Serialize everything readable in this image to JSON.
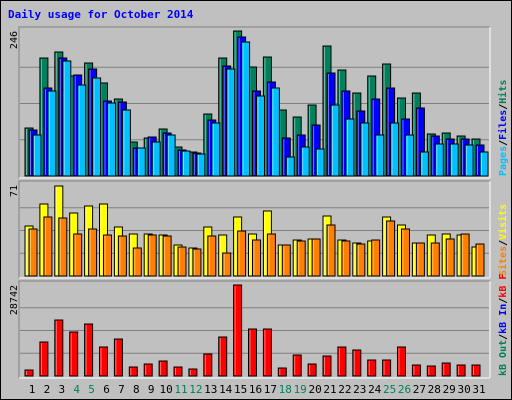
{
  "title": "Daily usage for October 2014",
  "colors": {
    "background": "#c0c0c0",
    "hits": "#00805c",
    "files": "#0000ff",
    "pages": "#00c0ff",
    "visits": "#ffff00",
    "sites": "#ff8000",
    "kb_in": "#0000ff",
    "kb_out": "#00805c",
    "kb_f": "#ff0000",
    "weekend_label": "#00805c",
    "weekday_label": "#000000"
  },
  "chart_data": [
    {
      "type": "bar",
      "name": "hits-files-pages",
      "ymax_label": "246",
      "ylim": [
        0,
        246
      ],
      "right_legend": [
        {
          "text": "Hits",
          "color": "#00805c"
        },
        {
          "text": "Files",
          "color": "#0000ff"
        },
        {
          "text": "Pages",
          "color": "#00c0ff"
        }
      ],
      "categories": [
        "1",
        "2",
        "3",
        "4",
        "5",
        "6",
        "7",
        "8",
        "9",
        "10",
        "11",
        "12",
        "13",
        "14",
        "15",
        "16",
        "17",
        "18",
        "19",
        "20",
        "21",
        "22",
        "23",
        "24",
        "25",
        "26",
        "27",
        "28",
        "29",
        "30",
        "31"
      ],
      "series": [
        {
          "name": "Hits",
          "values": [
            82,
            200,
            210,
            170,
            192,
            157,
            130,
            58,
            65,
            80,
            50,
            40,
            105,
            200,
            246,
            185,
            202,
            112,
            100,
            120,
            221,
            180,
            140,
            170,
            190,
            132,
            140,
            72,
            73,
            68,
            62
          ]
        },
        {
          "name": "Files",
          "values": [
            78,
            150,
            201,
            172,
            182,
            127,
            125,
            48,
            66,
            73,
            44,
            39,
            95,
            186,
            236,
            145,
            160,
            65,
            70,
            86,
            175,
            145,
            110,
            130,
            150,
            96,
            115,
            68,
            63,
            63,
            52
          ]
        },
        {
          "name": "Pages",
          "values": [
            70,
            145,
            195,
            155,
            167,
            123,
            112,
            48,
            58,
            70,
            42,
            37,
            90,
            182,
            227,
            135,
            150,
            33,
            50,
            45,
            120,
            96,
            90,
            70,
            90,
            70,
            40,
            55,
            55,
            52,
            40
          ]
        }
      ]
    },
    {
      "type": "bar",
      "name": "visits-sites",
      "ymax_label": "71",
      "ylim": [
        0,
        71
      ],
      "right_legend": [
        {
          "text": "Visits",
          "color": "#ffff00"
        },
        {
          "text": "Sites",
          "color": "#ff8000"
        }
      ],
      "categories": [
        "1",
        "2",
        "3",
        "4",
        "5",
        "6",
        "7",
        "8",
        "9",
        "10",
        "11",
        "12",
        "13",
        "14",
        "15",
        "16",
        "17",
        "18",
        "19",
        "20",
        "21",
        "22",
        "23",
        "24",
        "25",
        "26",
        "27",
        "28",
        "29",
        "30",
        "31"
      ],
      "series": [
        {
          "name": "Visits",
          "values": [
            39,
            56,
            70,
            49,
            55,
            56,
            38,
            33,
            33,
            32,
            24,
            22,
            38,
            32,
            46,
            33,
            51,
            24,
            28,
            29,
            47,
            28,
            26,
            27,
            46,
            40,
            26,
            32,
            33,
            32,
            23
          ]
        },
        {
          "name": "Sites",
          "values": [
            37,
            46,
            45,
            33,
            37,
            32,
            31,
            22,
            32,
            31,
            23,
            21,
            31,
            18,
            35,
            28,
            33,
            24,
            27,
            29,
            40,
            27,
            25,
            28,
            43,
            37,
            26,
            26,
            29,
            33,
            25
          ]
        }
      ]
    },
    {
      "type": "bar",
      "name": "kbytes",
      "ymax_label": "28742",
      "ylim": [
        0,
        28742
      ],
      "right_legend": [
        {
          "text": "kB F",
          "color": "#ff0000"
        },
        {
          "text": "kB In",
          "color": "#0000ff"
        },
        {
          "text": "kB Out",
          "color": "#00805c"
        }
      ],
      "categories": [
        "1",
        "2",
        "3",
        "4",
        "5",
        "6",
        "7",
        "8",
        "9",
        "10",
        "11",
        "12",
        "13",
        "14",
        "15",
        "16",
        "17",
        "18",
        "19",
        "20",
        "21",
        "22",
        "23",
        "24",
        "25",
        "26",
        "27",
        "28",
        "29",
        "30",
        "31"
      ],
      "series": [
        {
          "name": "kB F",
          "values": [
            1810,
            10600,
            17600,
            13800,
            16400,
            9300,
            11800,
            3000,
            3900,
            4800,
            2800,
            2300,
            7000,
            12400,
            28742,
            14700,
            14900,
            2400,
            6600,
            3700,
            6300,
            9100,
            8100,
            5100,
            5100,
            9100,
            3500,
            3100,
            4200,
            3500,
            3600
          ]
        }
      ]
    }
  ],
  "x_labels": [
    {
      "text": "1",
      "weekend": false
    },
    {
      "text": "2",
      "weekend": false
    },
    {
      "text": "3",
      "weekend": false
    },
    {
      "text": "4",
      "weekend": true
    },
    {
      "text": "5",
      "weekend": true
    },
    {
      "text": "6",
      "weekend": false
    },
    {
      "text": "7",
      "weekend": false
    },
    {
      "text": "8",
      "weekend": false
    },
    {
      "text": "9",
      "weekend": false
    },
    {
      "text": "10",
      "weekend": false
    },
    {
      "text": "11",
      "weekend": true
    },
    {
      "text": "12",
      "weekend": true
    },
    {
      "text": "13",
      "weekend": false
    },
    {
      "text": "14",
      "weekend": false
    },
    {
      "text": "15",
      "weekend": false
    },
    {
      "text": "16",
      "weekend": false
    },
    {
      "text": "17",
      "weekend": false
    },
    {
      "text": "18",
      "weekend": true
    },
    {
      "text": "19",
      "weekend": true
    },
    {
      "text": "20",
      "weekend": false
    },
    {
      "text": "21",
      "weekend": false
    },
    {
      "text": "22",
      "weekend": false
    },
    {
      "text": "23",
      "weekend": false
    },
    {
      "text": "24",
      "weekend": false
    },
    {
      "text": "25",
      "weekend": true
    },
    {
      "text": "26",
      "weekend": true
    },
    {
      "text": "27",
      "weekend": false
    },
    {
      "text": "28",
      "weekend": false
    },
    {
      "text": "29",
      "weekend": false
    },
    {
      "text": "30",
      "weekend": false
    },
    {
      "text": "31",
      "weekend": false
    }
  ]
}
